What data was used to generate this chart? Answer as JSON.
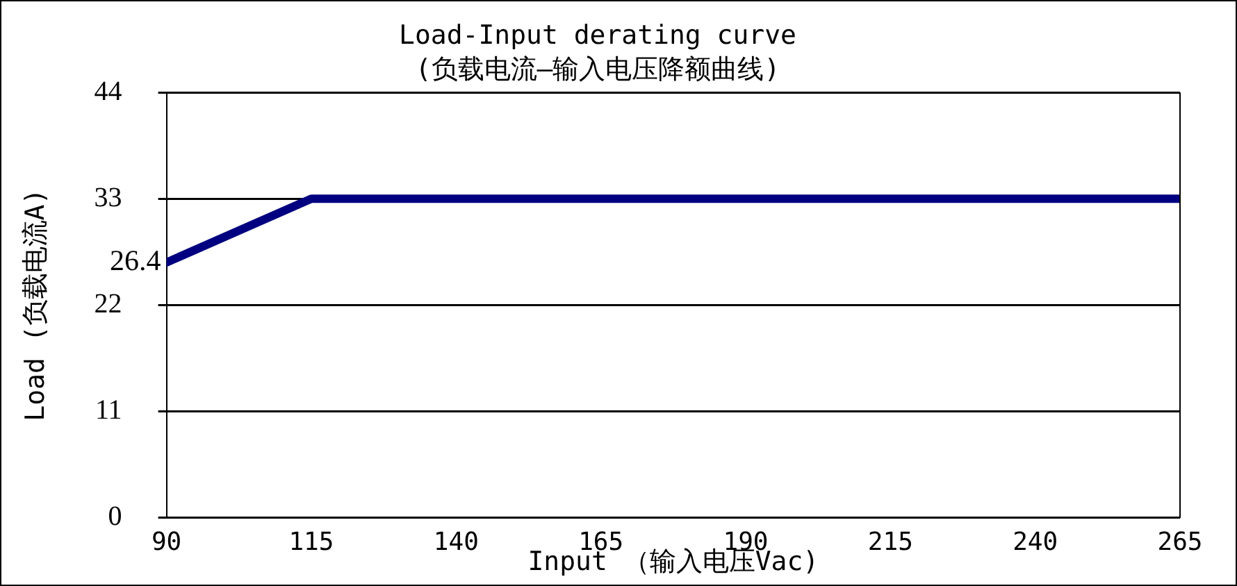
{
  "chart_data": {
    "type": "line",
    "title": "Load-Input derating curve",
    "subtitle": "(负载电流—输入电压降额曲线)",
    "xlabel": "Input （输入电压Vac)",
    "ylabel": "Load (负载电流A)",
    "x": [
      90,
      115,
      265
    ],
    "series": [
      {
        "color": "#000080",
        "values": [
          26.4,
          33,
          33
        ]
      }
    ],
    "xlim": [
      90,
      265
    ],
    "xticks": [
      90,
      115,
      140,
      165,
      190,
      215,
      240,
      265
    ],
    "ylim": [
      0,
      44
    ],
    "yticks": [
      0,
      11,
      22,
      33,
      44
    ],
    "annotations": [
      {
        "text": "26.4",
        "x": 90,
        "y": 26.4
      }
    ],
    "grid": "y",
    "legend": false,
    "marker": "none",
    "line_style": "solid"
  }
}
